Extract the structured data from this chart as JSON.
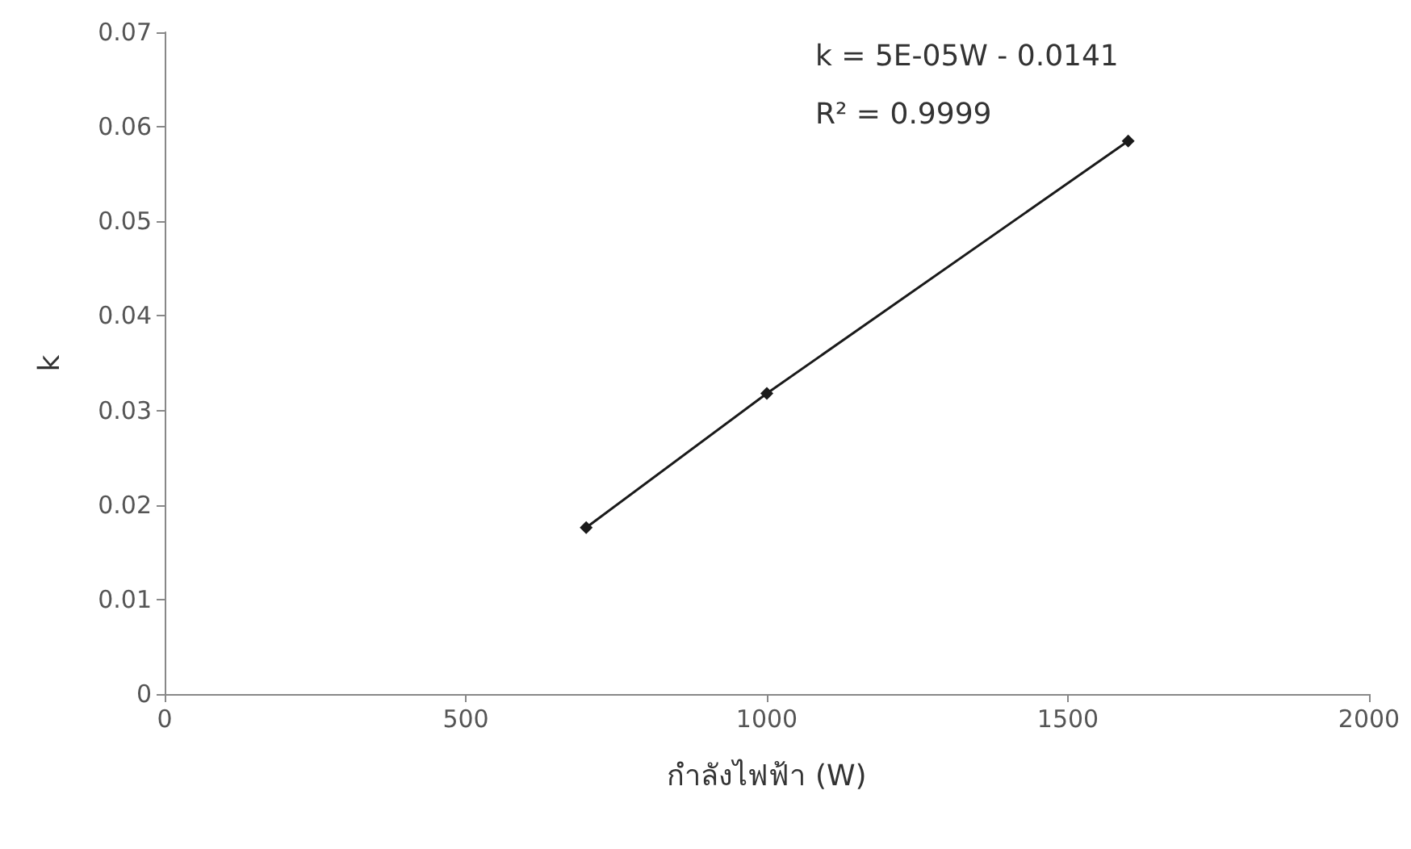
{
  "chart_data": {
    "type": "line",
    "xlabel": "กำลังไฟฟ้า (W)",
    "ylabel": "k",
    "x": [
      700,
      1000,
      1600
    ],
    "series": [
      {
        "color": "#1a1a1a",
        "values": [
          0.0176,
          0.0318,
          0.0585
        ]
      }
    ],
    "xlim": [
      0,
      2000
    ],
    "xticks": [
      0,
      500,
      1000,
      1500,
      2000
    ],
    "ylim": [
      0,
      0.07
    ],
    "yticks": [
      0,
      0.01,
      0.02,
      0.03,
      0.04,
      0.05,
      0.06,
      0.07
    ],
    "annotations": [
      "k = 5E-05W - 0.0141",
      "R² = 0.9999"
    ],
    "marker": "diamond",
    "line_style": "solid",
    "grid": false
  }
}
